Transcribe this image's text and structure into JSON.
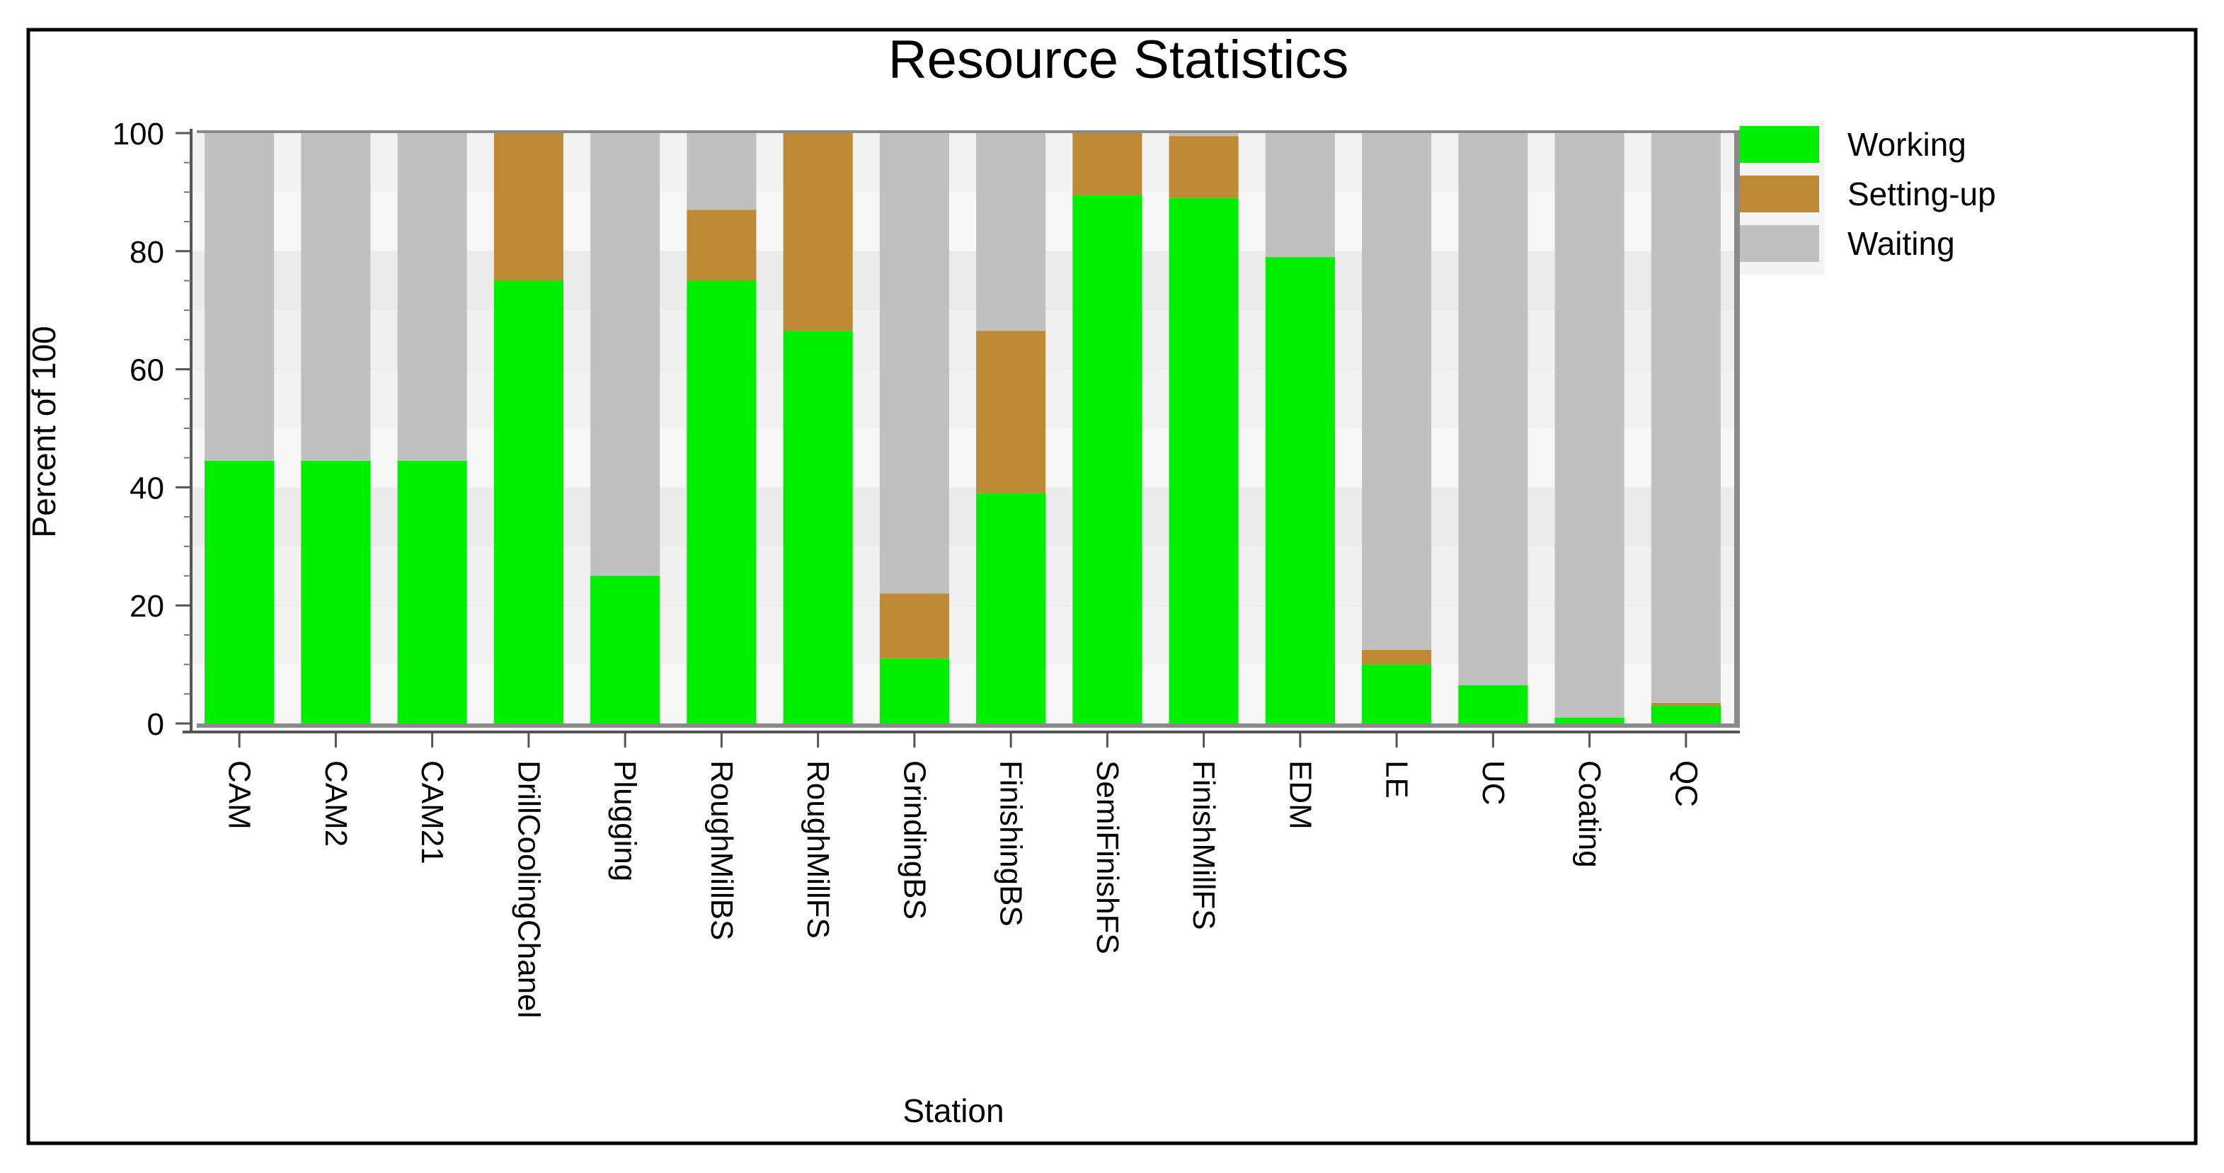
{
  "chart_data": {
    "type": "bar",
    "stacked": true,
    "title": "Resource Statistics",
    "xlabel": "Station",
    "ylabel": "Percent of 100",
    "ylim": [
      0,
      100
    ],
    "yticks": [
      0,
      20,
      40,
      60,
      80,
      100
    ],
    "legend_position": "right",
    "categories": [
      "CAM",
      "CAM2",
      "CAM21",
      "DrillCoolingChanel",
      "Plugging",
      "RoughMillBS",
      "RoughMillFS",
      "GrindingBS",
      "FinishingBS",
      "SemiFinishFS",
      "FinishMillFS",
      "EDM",
      "LE",
      "UC",
      "Coating",
      "QC"
    ],
    "series": [
      {
        "name": "Working",
        "color": "#00ee00",
        "values": [
          44.5,
          44.5,
          44.5,
          75,
          25,
          75,
          66.5,
          11,
          39,
          89.5,
          89,
          79,
          10,
          6.5,
          1,
          3
        ]
      },
      {
        "name": "Setting-up",
        "color": "#bf8a36",
        "values": [
          0,
          0,
          0,
          25,
          0,
          12,
          33.5,
          11,
          27.5,
          10.5,
          10.5,
          0,
          2.5,
          0,
          0,
          0.5
        ]
      },
      {
        "name": "Waiting",
        "color": "#c0c0c0",
        "values": [
          55.5,
          55.5,
          55.5,
          0,
          75,
          13,
          0,
          78,
          33.5,
          0,
          0.5,
          21,
          87.5,
          93.5,
          99,
          96.5
        ]
      }
    ]
  }
}
